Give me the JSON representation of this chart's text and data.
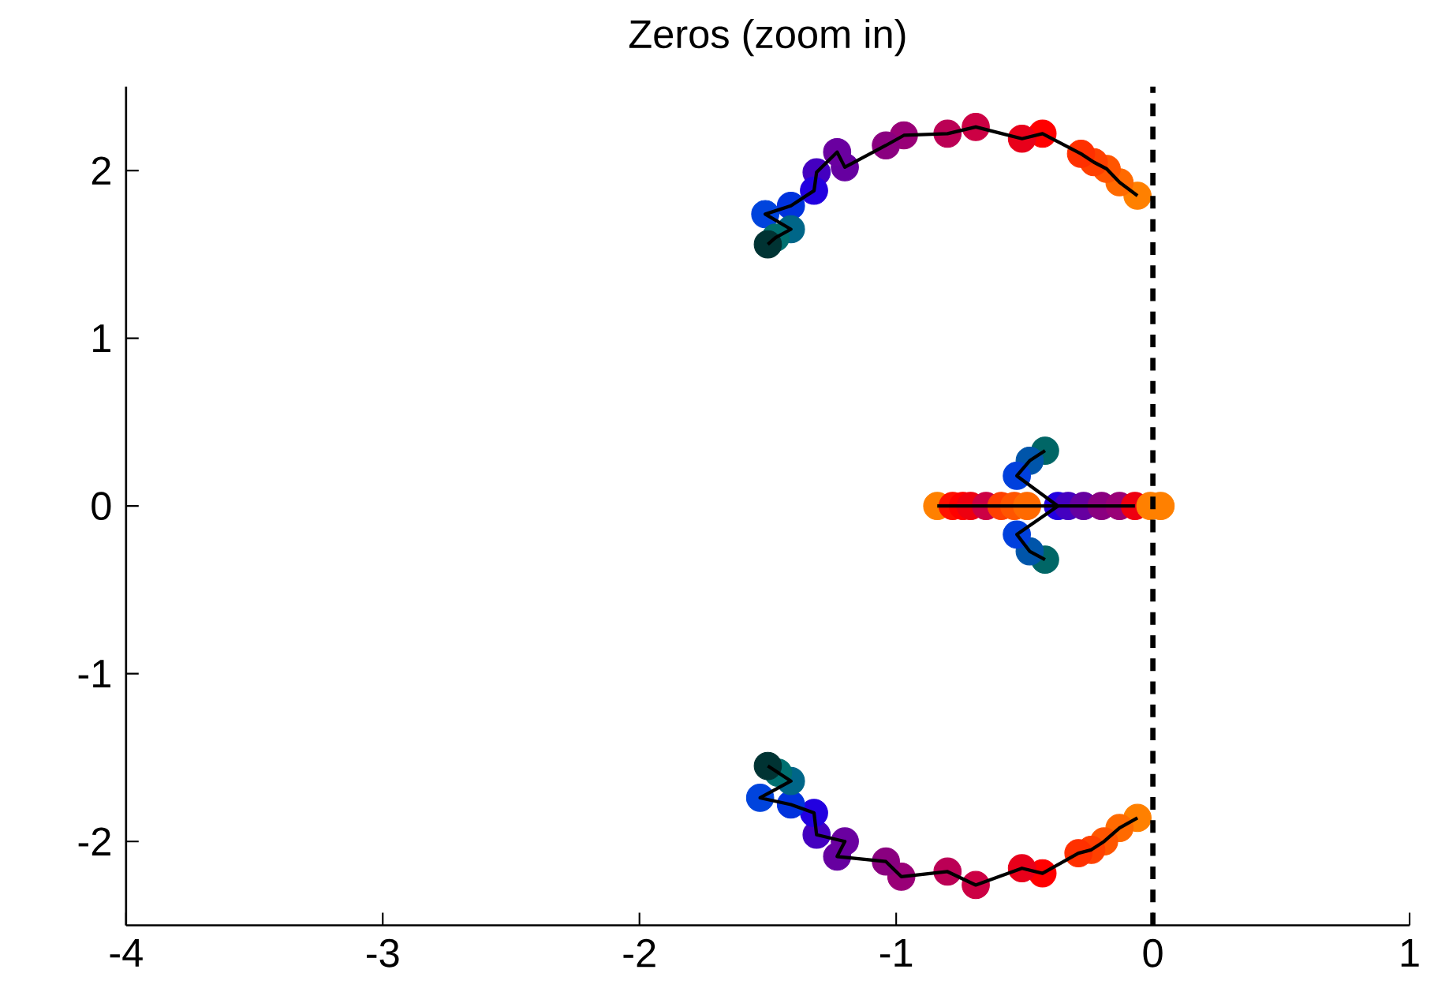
{
  "chart_data": {
    "type": "scatter",
    "title": "Zeros (zoom in)",
    "grid": false,
    "xlim": [
      -4,
      1
    ],
    "ylim": [
      -2.5,
      2.5
    ],
    "xticks": [
      -4,
      -3,
      -2,
      -1,
      0,
      1
    ],
    "yticks": [
      -2,
      -1,
      0,
      1,
      2
    ],
    "ref_lines": [
      {
        "axis": "x",
        "value": 0,
        "color": "#000000",
        "line_style": "dashed"
      }
    ],
    "series": [
      {
        "marker": "circle",
        "x": [
          -0.06,
          -0.13,
          -0.18,
          -0.23,
          -0.28,
          -0.43,
          -0.51,
          -0.69,
          -0.8,
          -0.97,
          -1.04,
          -1.2,
          -1.23,
          -1.31,
          -1.32,
          -1.41,
          -1.51,
          -1.41,
          -1.47,
          -1.5
        ],
        "values": [
          1.85,
          1.93,
          2.01,
          2.05,
          2.1,
          2.22,
          2.19,
          2.26,
          2.22,
          2.21,
          2.15,
          2.02,
          2.11,
          1.99,
          1.88,
          1.79,
          1.74,
          1.65,
          1.6,
          1.56
        ],
        "colors": [
          "#ff8000",
          "#ff6a00",
          "#ff5500",
          "#ff4000",
          "#ff3000",
          "#ff0000",
          "#e8001a",
          "#cc0044",
          "#bb0055",
          "#990077",
          "#8a0080",
          "#6600a0",
          "#6a00a0",
          "#4400c0",
          "#2200e0",
          "#0033dd",
          "#0044dd",
          "#006688",
          "#007070",
          "#003333"
        ]
      },
      {
        "marker": "circle",
        "x": [
          -0.06,
          -0.13,
          -0.19,
          -0.24,
          -0.29,
          -0.43,
          -0.51,
          -0.69,
          -0.8,
          -0.98,
          -1.04,
          -1.23,
          -1.2,
          -1.31,
          -1.32,
          -1.41,
          -1.53,
          -1.41,
          -1.46,
          -1.5
        ],
        "values": [
          -1.86,
          -1.92,
          -2.0,
          -2.05,
          -2.07,
          -2.19,
          -2.16,
          -2.26,
          -2.18,
          -2.21,
          -2.12,
          -2.09,
          -2.0,
          -1.96,
          -1.83,
          -1.78,
          -1.74,
          -1.64,
          -1.59,
          -1.55
        ],
        "colors": [
          "#ff8000",
          "#ff6a00",
          "#ff5500",
          "#ff4000",
          "#ff3000",
          "#ff0000",
          "#e8001a",
          "#cc0044",
          "#bb0055",
          "#990077",
          "#8a0080",
          "#6600a0",
          "#6a00a0",
          "#4400c0",
          "#2200e0",
          "#0033dd",
          "#0044dd",
          "#006688",
          "#007070",
          "#003333"
        ]
      },
      {
        "marker": "circle",
        "x": [
          -0.84,
          -0.78,
          -0.74,
          -0.71,
          -0.65,
          -0.59,
          -0.54,
          -0.49,
          -0.37,
          -0.33,
          -0.27,
          -0.2,
          -0.13,
          -0.07,
          -0.01,
          0.03
        ],
        "values": [
          0,
          0,
          0,
          0,
          0,
          0,
          0,
          0,
          0,
          0,
          0,
          0,
          0,
          0,
          0,
          0
        ],
        "colors": [
          "#ff8000",
          "#ff1000",
          "#ff0000",
          "#ee0010",
          "#cc0044",
          "#ff4000",
          "#ff5500",
          "#ff6a00",
          "#2200e0",
          "#4400c0",
          "#6600a0",
          "#8a0080",
          "#990077",
          "#ee0010",
          "#ff8000",
          "#ff8000"
        ]
      },
      {
        "marker": "circle",
        "x": [
          -0.42,
          -0.48,
          -0.53
        ],
        "values": [
          0.33,
          0.27,
          0.18
        ],
        "colors": [
          "#006666",
          "#0055aa",
          "#0040dd"
        ]
      },
      {
        "marker": "circle",
        "x": [
          -0.42,
          -0.48,
          -0.53
        ],
        "values": [
          -0.32,
          -0.27,
          -0.17
        ],
        "colors": [
          "#006666",
          "#0055aa",
          "#0040dd"
        ]
      },
      {
        "type": "line",
        "marker": "none",
        "color": "#000000",
        "x": [
          -0.06,
          -0.13,
          -0.18,
          -0.23,
          -0.28,
          -0.43,
          -0.51,
          -0.69,
          -0.8,
          -0.97,
          -1.04,
          -1.2,
          -1.23,
          -1.31,
          -1.32,
          -1.41,
          -1.51,
          -1.41,
          -1.47,
          -1.5
        ],
        "values": [
          1.85,
          1.93,
          2.01,
          2.05,
          2.1,
          2.22,
          2.19,
          2.26,
          2.22,
          2.21,
          2.15,
          2.02,
          2.11,
          1.99,
          1.88,
          1.79,
          1.74,
          1.65,
          1.6,
          1.56
        ]
      },
      {
        "type": "line",
        "marker": "none",
        "color": "#000000",
        "x": [
          -0.06,
          -0.13,
          -0.19,
          -0.24,
          -0.29,
          -0.43,
          -0.51,
          -0.69,
          -0.8,
          -0.98,
          -1.04,
          -1.23,
          -1.2,
          -1.31,
          -1.32,
          -1.41,
          -1.53,
          -1.41,
          -1.46,
          -1.5
        ],
        "values": [
          -1.86,
          -1.92,
          -2.0,
          -2.05,
          -2.07,
          -2.19,
          -2.16,
          -2.26,
          -2.18,
          -2.21,
          -2.12,
          -2.09,
          -2.0,
          -1.96,
          -1.83,
          -1.78,
          -1.74,
          -1.64,
          -1.59,
          -1.55
        ]
      },
      {
        "type": "line",
        "marker": "none",
        "color": "#000000",
        "x": [
          -0.84,
          -0.07
        ],
        "values": [
          0,
          0
        ]
      },
      {
        "type": "line",
        "marker": "none",
        "color": "#000000",
        "x": [
          -0.42,
          -0.48,
          -0.53,
          -0.37
        ],
        "values": [
          0.33,
          0.27,
          0.18,
          0
        ]
      },
      {
        "type": "line",
        "marker": "none",
        "color": "#000000",
        "x": [
          -0.42,
          -0.48,
          -0.53,
          -0.37
        ],
        "values": [
          -0.32,
          -0.27,
          -0.17,
          0
        ]
      }
    ]
  }
}
